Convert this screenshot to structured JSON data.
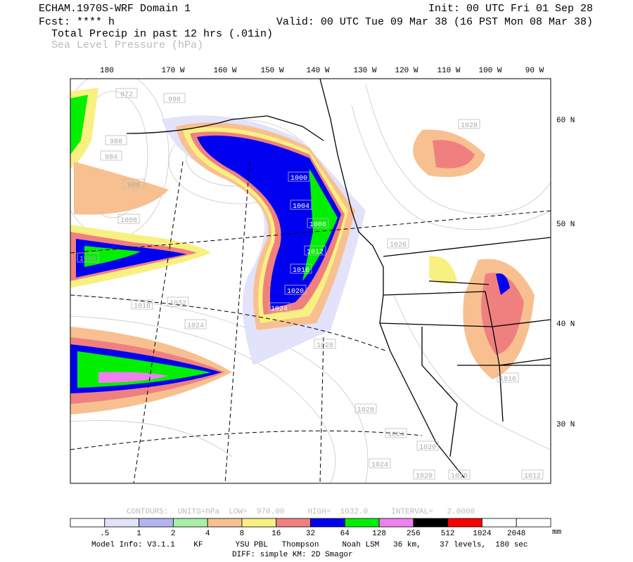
{
  "header": {
    "title": "ECHAM.1970S-WRF Domain 1",
    "init": "Init: 00 UTC Fri 01 Sep 28",
    "forecast": "Fcst: **** h",
    "valid": "Valid: 00 UTC Tue 09 Mar 38 (16 PST Mon 08 Mar 38)",
    "field_1": "Total Precip in past 12 hrs (.01in)",
    "field_2": "Sea Level Pressure (hPa)"
  },
  "map": {
    "longitude_labels": [
      "180",
      "170 W",
      "160 W",
      "150 W",
      "140 W",
      "130 W",
      "120 W",
      "110 W",
      "100 W",
      "90 W"
    ],
    "latitude_labels": [
      "60 N",
      "50 N",
      "40 N",
      "30 N"
    ],
    "contour_labels": [
      "972",
      "988",
      "984",
      "996",
      "988",
      "1000",
      "1008",
      "1000",
      "1004",
      "1008",
      "1012",
      "1016",
      "1020",
      "1024",
      "1016",
      "1032",
      "1024",
      "1028",
      "1028",
      "1026",
      "1028",
      "1024",
      "1020",
      "1024",
      "1020",
      "1016",
      "1012",
      "1016"
    ]
  },
  "colorbar": {
    "contour_info": "CONTOURS:  UNITS=hPa  LOW=  970.00     HIGH=  1032.0     INTERVAL=   2.0000",
    "labels": [
      ".5",
      "1",
      "2",
      "4",
      "8",
      "16",
      "32",
      "64",
      "128",
      "256",
      "512",
      "1024",
      "2048"
    ],
    "unit": "mm",
    "colors": [
      "#ffffff",
      "#e2e2fa",
      "#b4b4f0",
      "#a8f0a8",
      "#f8c090",
      "#f8f080",
      "#f08080",
      "#0000f0",
      "#00f000",
      "#f080f0",
      "#000000",
      "#f80000",
      "#ffffff",
      "#ffffff"
    ]
  },
  "footer": {
    "model_info": "Model Info: V3.1.1    KF       YSU PBL   Thompson     Noah LSM   36 km,    37 levels,  180 sec",
    "diff": "DIFF: simple KM: 2D Smagor"
  }
}
